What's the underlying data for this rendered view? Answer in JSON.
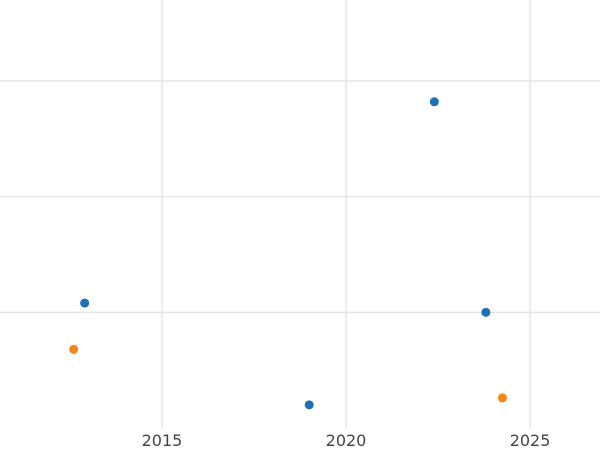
{
  "chart_data": {
    "type": "scatter",
    "title": "",
    "xlabel": "",
    "ylabel": "",
    "xlim": [
      2010.6,
      2026.9
    ],
    "ylim": [
      -0.2,
      3.5
    ],
    "x_ticks": [
      2015,
      2020,
      2025
    ],
    "y_gridlines": [
      0.8,
      1.8,
      2.8
    ],
    "grid": true,
    "legend": "none",
    "series": [
      {
        "color": "#1f6fb4",
        "points": [
          {
            "x": 2012.9,
            "y": 0.88
          },
          {
            "x": 2019.0,
            "y": 0.0
          },
          {
            "x": 2022.4,
            "y": 2.62
          },
          {
            "x": 2023.8,
            "y": 0.8
          }
        ]
      },
      {
        "color": "#f58518",
        "points": [
          {
            "x": 2012.6,
            "y": 0.48
          },
          {
            "x": 2024.25,
            "y": 0.06
          }
        ]
      }
    ]
  }
}
